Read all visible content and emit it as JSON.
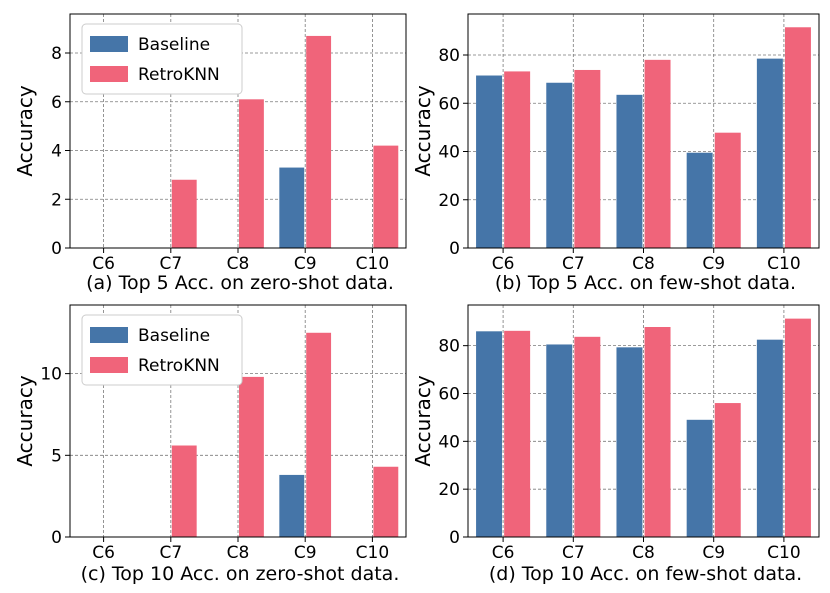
{
  "colors": {
    "baseline": "#4575a8",
    "retroknn": "#f0647a"
  },
  "chart_data": [
    {
      "type": "bar",
      "caption": "(a) Top 5 Acc. on zero-shot data.",
      "categories": [
        "C6",
        "C7",
        "C8",
        "C9",
        "C10"
      ],
      "series": [
        {
          "name": "Baseline",
          "values": [
            0,
            0,
            0,
            3.3,
            0
          ]
        },
        {
          "name": "RetroKNN",
          "values": [
            0,
            2.8,
            6.1,
            8.7,
            4.2
          ]
        }
      ],
      "ylabel": "Accuracy",
      "ylim": [
        0,
        9.6
      ],
      "yticks": [
        0,
        2,
        4,
        6,
        8
      ],
      "legend": {
        "position": "top-left",
        "entries": [
          "Baseline",
          "RetroKNN"
        ]
      },
      "grid": true
    },
    {
      "type": "bar",
      "caption": "(b) Top 5 Acc. on few-shot data.",
      "categories": [
        "C6",
        "C7",
        "C8",
        "C9",
        "C10"
      ],
      "series": [
        {
          "name": "Baseline",
          "values": [
            71.5,
            68.5,
            63.5,
            39.5,
            78.5
          ]
        },
        {
          "name": "RetroKNN",
          "values": [
            73.2,
            73.8,
            78.0,
            47.8,
            91.5
          ]
        }
      ],
      "ylabel": "Accuracy",
      "ylim": [
        0,
        97
      ],
      "yticks": [
        0,
        20,
        40,
        60,
        80
      ],
      "grid": true
    },
    {
      "type": "bar",
      "caption": "(c) Top 10 Acc. on zero-shot data.",
      "categories": [
        "C6",
        "C7",
        "C8",
        "C9",
        "C10"
      ],
      "series": [
        {
          "name": "Baseline",
          "values": [
            0,
            0,
            0,
            3.8,
            0
          ]
        },
        {
          "name": "RetroKNN",
          "values": [
            0,
            5.6,
            9.8,
            12.5,
            4.3
          ]
        }
      ],
      "ylabel": "Accuracy",
      "ylim": [
        0,
        14.2
      ],
      "yticks": [
        0,
        5,
        10
      ],
      "legend": {
        "position": "top-left",
        "entries": [
          "Baseline",
          "RetroKNN"
        ]
      },
      "grid": true
    },
    {
      "type": "bar",
      "caption": "(d) Top 10 Acc. on few-shot data.",
      "categories": [
        "C6",
        "C7",
        "C8",
        "C9",
        "C10"
      ],
      "series": [
        {
          "name": "Baseline",
          "values": [
            86.0,
            80.5,
            79.3,
            49.0,
            82.5
          ]
        },
        {
          "name": "RetroKNN",
          "values": [
            86.2,
            83.7,
            87.8,
            56.0,
            91.3
          ]
        }
      ],
      "ylabel": "Accuracy",
      "ylim": [
        0,
        97
      ],
      "yticks": [
        0,
        20,
        40,
        60,
        80
      ],
      "grid": true
    }
  ]
}
